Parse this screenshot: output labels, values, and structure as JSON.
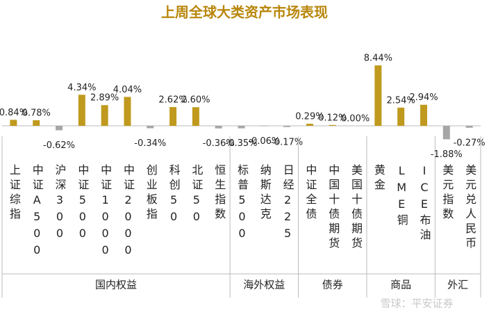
{
  "chart_data": {
    "type": "bar",
    "title": "上周全球大类资产市场表现",
    "positive_color": "#c09a1e",
    "negative_color": "#a6a6a6",
    "groups": [
      {
        "name": "国内权益",
        "categories": [
          "上证综指",
          "中证A500",
          "沪深300",
          "中证500",
          "中证1000",
          "中证2000",
          "创业板指",
          "科创50",
          "北证50",
          "恒生指数"
        ],
        "values": [
          0.84,
          0.78,
          -0.62,
          4.34,
          2.89,
          4.04,
          -0.34,
          2.62,
          2.6,
          -0.36
        ],
        "value_labels": [
          "0.84%",
          "0.78%",
          "-0.62%",
          "4.34%",
          "2.89%",
          "4.04%",
          "-0.34%",
          "2.62%",
          "2.60%",
          "-0.36%"
        ]
      },
      {
        "name": "海外权益",
        "categories": [
          "标普500",
          "纳斯达克",
          "日经225"
        ],
        "values": [
          -0.35,
          -0.06,
          -0.17
        ],
        "value_labels": [
          "-0.35%",
          "-0.06%",
          "-0.17%"
        ]
      },
      {
        "name": "债券",
        "categories": [
          "中证全债",
          "中国十债期货",
          "美国十债期货"
        ],
        "values": [
          0.29,
          0.12,
          0.0
        ],
        "value_labels": [
          "0.29%",
          "0.12%",
          "0.00%"
        ]
      },
      {
        "name": "商品",
        "categories": [
          "黄金",
          "LME铜",
          "ICE布油"
        ],
        "values": [
          8.44,
          2.54,
          2.94
        ],
        "value_labels": [
          "8.44%",
          "2.54%",
          "2.94%"
        ]
      },
      {
        "name": "外汇",
        "categories": [
          "美元指数",
          "美元兑人民币"
        ],
        "values": [
          -1.88,
          -0.27
        ],
        "value_labels": [
          "-1.88%",
          "-0.27%"
        ]
      }
    ],
    "watermark": "雪球：平安证券"
  }
}
